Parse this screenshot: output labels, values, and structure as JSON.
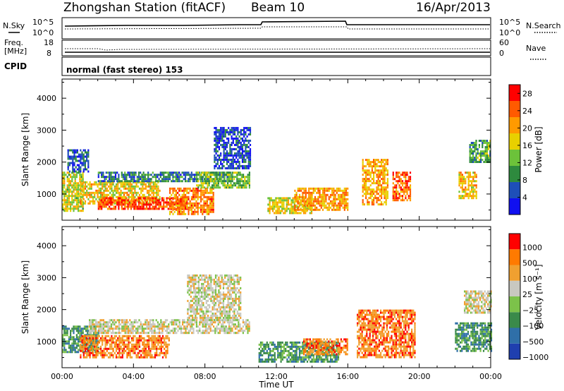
{
  "header": {
    "station": "Zhongshan Station (fitACF)",
    "beam": "Beam 10",
    "date": "16/Apr/2013"
  },
  "aux": {
    "nsky_label": "N.Sky",
    "nsearch_label": "N.Search",
    "nsky_ticks": [
      "10^5",
      "10^0"
    ],
    "nsearch_ticks": [
      "10^5",
      "10^0"
    ],
    "freq_label": "Freq.",
    "freq_unit": "[MHz]",
    "freq_ticks": [
      "18",
      "8"
    ],
    "nave_label": "Nave",
    "nave_ticks": [
      "60",
      "0"
    ],
    "cpid_label": "CPID",
    "cpid_text": "normal (fast stereo) 153"
  },
  "axes": {
    "xlabel": "Time UT",
    "ylabel": "Slant Range [km]",
    "yticks": [
      "1000",
      "2000",
      "3000",
      "4000"
    ]
  },
  "chart_data": [
    {
      "type": "heatmap",
      "name": "power",
      "xlabel": "Time UT",
      "ylabel": "Slant Range [km]",
      "x_ticks": [
        "00:00",
        "04:00",
        "08:00",
        "12:00",
        "16:00",
        "20:00",
        "00:00"
      ],
      "xlim_hours": [
        0,
        24
      ],
      "ylim_km": [
        180,
        4600
      ],
      "colorbar": {
        "label": "Power [dB]",
        "ticks": [
          "4",
          "8",
          "12",
          "16",
          "20",
          "24",
          "28"
        ],
        "range": [
          0,
          30
        ],
        "colors": [
          "#1010f0",
          "#1e4fb8",
          "#2e8a3e",
          "#6cc23a",
          "#e8d000",
          "#ff9a00",
          "#ff5a00",
          "#ff0000"
        ]
      },
      "regions": [
        {
          "t0": 0.0,
          "t1": 1.2,
          "r0": 500,
          "r1": 1700,
          "v": 16
        },
        {
          "t0": 0.3,
          "t1": 1.5,
          "r0": 1700,
          "r1": 2400,
          "v": 6
        },
        {
          "t0": 1.0,
          "t1": 5.5,
          "r0": 700,
          "r1": 1400,
          "v": 18
        },
        {
          "t0": 2.0,
          "t1": 7.0,
          "r0": 550,
          "r1": 900,
          "v": 26
        },
        {
          "t0": 2.0,
          "t1": 9.5,
          "r0": 1400,
          "r1": 1700,
          "v": 8
        },
        {
          "t0": 6.0,
          "t1": 8.5,
          "r0": 400,
          "r1": 1200,
          "v": 22
        },
        {
          "t0": 7.5,
          "t1": 10.5,
          "r0": 1200,
          "r1": 1700,
          "v": 13
        },
        {
          "t0": 8.5,
          "t1": 10.5,
          "r0": 1800,
          "r1": 3100,
          "v": 5
        },
        {
          "t0": 11.5,
          "t1": 14.0,
          "r0": 400,
          "r1": 900,
          "v": 17
        },
        {
          "t0": 13.0,
          "t1": 16.0,
          "r0": 500,
          "r1": 1200,
          "v": 21
        },
        {
          "t0": 16.8,
          "t1": 18.2,
          "r0": 700,
          "r1": 2100,
          "v": 20
        },
        {
          "t0": 18.5,
          "t1": 19.5,
          "r0": 800,
          "r1": 1700,
          "v": 23
        },
        {
          "t0": 22.2,
          "t1": 23.2,
          "r0": 900,
          "r1": 1700,
          "v": 19
        },
        {
          "t0": 22.8,
          "t1": 24.0,
          "r0": 2000,
          "r1": 2700,
          "v": 11
        }
      ]
    },
    {
      "type": "heatmap",
      "name": "velocity",
      "xlabel": "Time UT",
      "ylabel": "Slant Range [km]",
      "x_ticks": [
        "00:00",
        "04:00",
        "08:00",
        "12:00",
        "16:00",
        "20:00",
        "00:00"
      ],
      "xlim_hours": [
        0,
        24
      ],
      "ylim_km": [
        180,
        4600
      ],
      "colorbar": {
        "label": "Velocity [m s⁻¹]",
        "ticks": [
          "1000",
          "500",
          "100",
          "25",
          "−25",
          "−100",
          "−500",
          "−1000"
        ],
        "colors": [
          "#1f3faf",
          "#2f6fa8",
          "#3a8a4a",
          "#7cc24a",
          "#c8c8c0",
          "#f0a030",
          "#ff7a00",
          "#ff0000"
        ]
      },
      "regions": [
        {
          "t0": 0.0,
          "t1": 2.0,
          "r0": 700,
          "r1": 1500,
          "v": "green"
        },
        {
          "t0": 1.0,
          "t1": 6.0,
          "r0": 500,
          "r1": 1200,
          "v": "orange"
        },
        {
          "t0": 1.5,
          "t1": 10.5,
          "r0": 1300,
          "r1": 1700,
          "v": "grey"
        },
        {
          "t0": 7.0,
          "t1": 10.0,
          "r0": 1700,
          "r1": 3100,
          "v": "grey"
        },
        {
          "t0": 11.0,
          "t1": 15.5,
          "r0": 400,
          "r1": 1000,
          "v": "green"
        },
        {
          "t0": 13.5,
          "t1": 16.0,
          "r0": 600,
          "r1": 1100,
          "v": "orange"
        },
        {
          "t0": 16.5,
          "t1": 19.8,
          "r0": 500,
          "r1": 2000,
          "v": "orange"
        },
        {
          "t0": 22.0,
          "t1": 24.0,
          "r0": 700,
          "r1": 1600,
          "v": "green"
        },
        {
          "t0": 22.5,
          "t1": 24.0,
          "r0": 1900,
          "r1": 2600,
          "v": "grey"
        }
      ]
    }
  ]
}
